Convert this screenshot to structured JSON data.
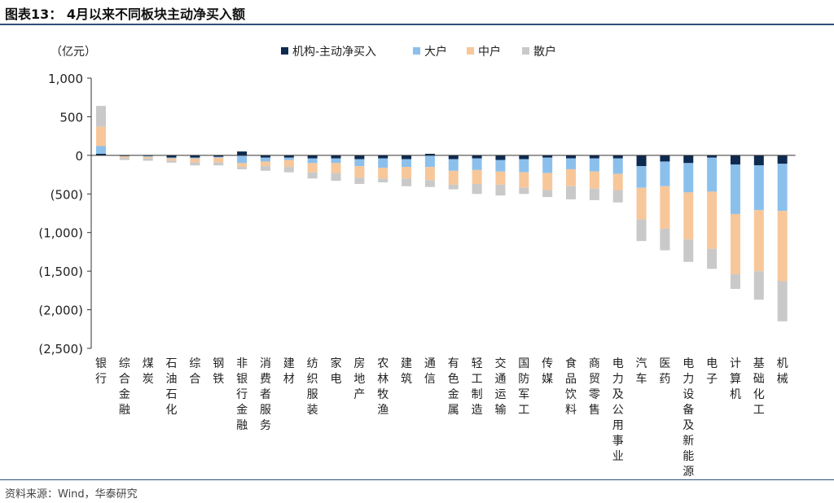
{
  "header": {
    "title": "图表13： 4月以来不同板块主动净买入额"
  },
  "footer": {
    "source": "资料来源：Wind，华泰研究"
  },
  "colors": {
    "机构-主动净买入": "#0e2a50",
    "大户": "#8cc0ec",
    "中户": "#f7c79a",
    "散户": "#c9c9c9",
    "axis": "#333333"
  },
  "chart_data": {
    "type": "bar",
    "stacked": true,
    "unit_label": "（亿元）",
    "ylim": [
      -2500,
      1000
    ],
    "yticks": [
      1000,
      500,
      0,
      -500,
      -1000,
      -1500,
      -2000,
      -2500
    ],
    "ytick_labels": [
      "1,000",
      "500",
      "0",
      "(500)",
      "(1,000)",
      "(1,500)",
      "(2,000)",
      "(2,500)"
    ],
    "grid": false,
    "legend_position": "top",
    "categories": [
      "银行",
      "综合金融",
      "煤炭",
      "石油石化",
      "综合",
      "钢铁",
      "非银行金融",
      "消费者服务",
      "建材",
      "纺织服装",
      "家电",
      "房地产",
      "农林牧渔",
      "建筑",
      "通信",
      "有色金属",
      "轻工制造",
      "交通运输",
      "国防军工",
      "传媒",
      "食品饮料",
      "商贸零售",
      "电力及公用事业",
      "汽车",
      "医药",
      "电力设备及新能源",
      "电子",
      "计算机",
      "基础化工",
      "机械"
    ],
    "series": [
      {
        "name": "机构-主动净买入",
        "values": [
          20,
          -10,
          -10,
          -30,
          -30,
          -20,
          50,
          -30,
          -30,
          -40,
          -40,
          -50,
          -40,
          -50,
          20,
          -50,
          -40,
          -60,
          -50,
          -30,
          -40,
          -40,
          -40,
          -140,
          -80,
          -100,
          -30,
          -120,
          -130,
          -110
        ]
      },
      {
        "name": "大户",
        "values": [
          100,
          -5,
          -10,
          -10,
          -10,
          -10,
          -100,
          -50,
          -30,
          -60,
          -60,
          -90,
          -120,
          -100,
          -150,
          -150,
          -150,
          -150,
          -170,
          -200,
          -140,
          -170,
          -200,
          -280,
          -320,
          -380,
          -440,
          -640,
          -580,
          -610
        ]
      },
      {
        "name": "中户",
        "values": [
          250,
          -20,
          -20,
          -30,
          -50,
          -60,
          -50,
          -60,
          -90,
          -120,
          -130,
          -150,
          -140,
          -150,
          -170,
          -180,
          -180,
          -170,
          -200,
          -220,
          -220,
          -220,
          -210,
          -410,
          -550,
          -610,
          -740,
          -780,
          -790,
          -910
        ]
      },
      {
        "name": "散户",
        "values": [
          270,
          -25,
          -30,
          -25,
          -40,
          -40,
          -30,
          -60,
          -70,
          -80,
          -100,
          -80,
          -50,
          -100,
          -90,
          -60,
          -130,
          -140,
          -80,
          -90,
          -170,
          -150,
          -160,
          -280,
          -280,
          -290,
          -260,
          -190,
          -370,
          -520
        ]
      }
    ]
  }
}
